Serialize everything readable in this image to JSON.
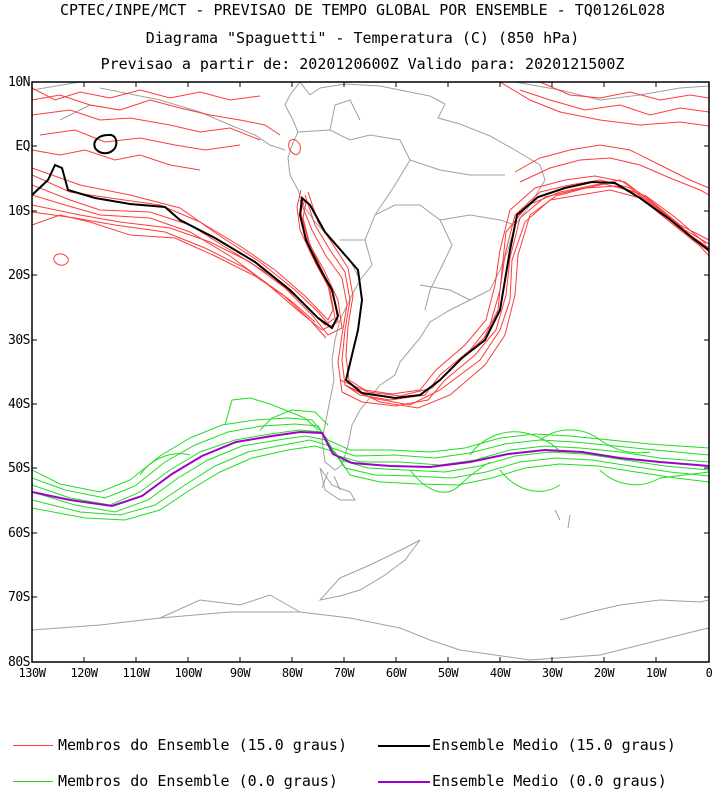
{
  "header": {
    "line1": "CPTEC/INPE/MCT - PREVISAO DE TEMPO GLOBAL POR ENSEMBLE - TQ0126L028",
    "line2": "Diagrama \"Spaguetti\" - Temperatura (C) (850 hPa)",
    "line3": "Previsao a partir de: 2020120600Z  Valido para: 2020121500Z"
  },
  "axes": {
    "y_labels": [
      "10N",
      "EQ",
      "10S",
      "20S",
      "30S",
      "40S",
      "50S",
      "60S",
      "70S",
      "80S"
    ],
    "x_labels": [
      "130W",
      "120W",
      "110W",
      "100W",
      "90W",
      "80W",
      "70W",
      "60W",
      "50W",
      "40W",
      "30W",
      "20W",
      "10W",
      "0"
    ]
  },
  "colors": {
    "members_15": "#ff3b3b",
    "mean_15": "#000000",
    "members_0": "#22dd22",
    "mean_0": "#a000c8",
    "coast": "#a0a0a0"
  },
  "legend": {
    "members_15": "Membros do Ensemble (15.0 graus)",
    "mean_15": "Ensemble Medio (15.0 graus)",
    "members_0": "Membros do Ensemble (0.0 graus)",
    "mean_0": "Ensemble Medio (0.0 graus)"
  }
}
